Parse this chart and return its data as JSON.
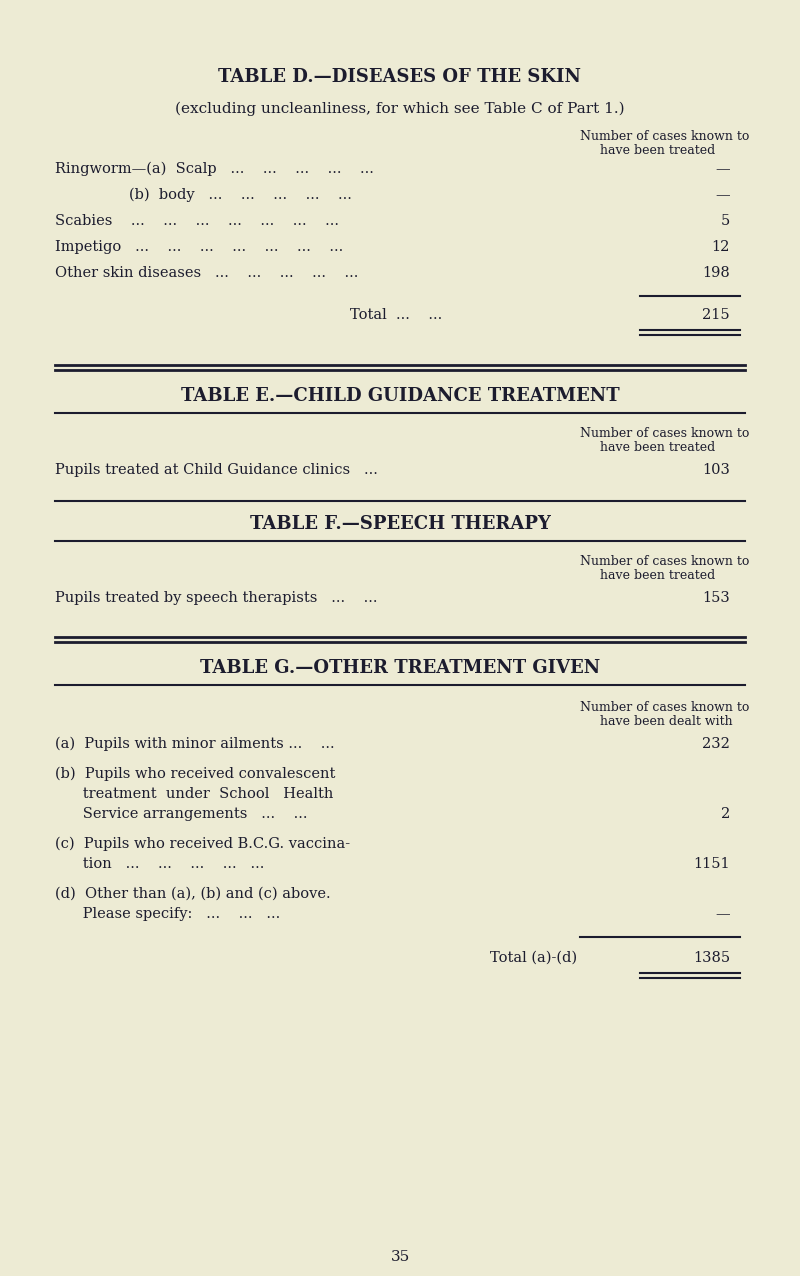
{
  "bg_color": "#edebd4",
  "text_color": "#1c1c2e",
  "page_number": "35",
  "table_d": {
    "title": "TABLE D.—DISEASES OF THE SKIN",
    "subtitle": "(excluding uncleanliness, for which see Table C of Part 1.)",
    "col_header_line1": "Number of cases known to",
    "col_header_line2": "have been treated",
    "rows": [
      {
        "label": "Ringworm—(a)  Scalp   ...    ...    ...    ...    ...",
        "dots": "",
        "value": "—"
      },
      {
        "label": "                (b)  body   ...    ...    ...    ...    ...",
        "dots": "",
        "value": "—"
      },
      {
        "label": "Scabies    ...    ...    ...    ...    ...    ...    ...",
        "dots": "",
        "value": "5"
      },
      {
        "label": "Impetigo   ...    ...    ...    ...    ...    ...    ...",
        "dots": "",
        "value": "12"
      },
      {
        "label": "Other skin diseases   ...    ...    ...    ...    ...",
        "dots": "",
        "value": "198"
      }
    ],
    "total_label": "Total  ...    ...  ",
    "total_value": "215"
  },
  "table_e": {
    "title": "TABLE E.—CHILD GUIDANCE TREATMENT",
    "col_header_line1": "Number of cases known to",
    "col_header_line2": "have been treated",
    "row_label": "Pupils treated at Child Guidance clinics   ...",
    "row_value": "103"
  },
  "table_f": {
    "title": "TABLE F.—SPEECH THERAPY",
    "col_header_line1": "Number of cases known to",
    "col_header_line2": "have been treated",
    "row_label": "Pupils treated by speech therapists   ...    ...",
    "row_value": "153"
  },
  "table_g": {
    "title": "TABLE G.—OTHER TREATMENT GIVEN",
    "col_header_line1": "Number of cases known to",
    "col_header_line2": "have been dealt with",
    "row_a_label": "(a)  Pupils with minor ailments ...    ...",
    "row_a_value": "232",
    "row_b_label1": "(b)  Pupils who received convalescent",
    "row_b_label2": "      treatment  under  School   Health",
    "row_b_label3": "      Service arrangements   ...    ...",
    "row_b_value": "2",
    "row_c_label1": "(c)  Pupils who received B.C.G. vaccina-",
    "row_c_label2": "      tion   ...    ...    ...    ...   ...",
    "row_c_value": "1151",
    "row_d_label1": "(d)  Other than (a), (b) and (c) above.",
    "row_d_label2": "      Please specify:   ...    ...   ...",
    "row_d_value": "—",
    "total_label": "Total (a)-(d)",
    "total_value": "1385"
  }
}
